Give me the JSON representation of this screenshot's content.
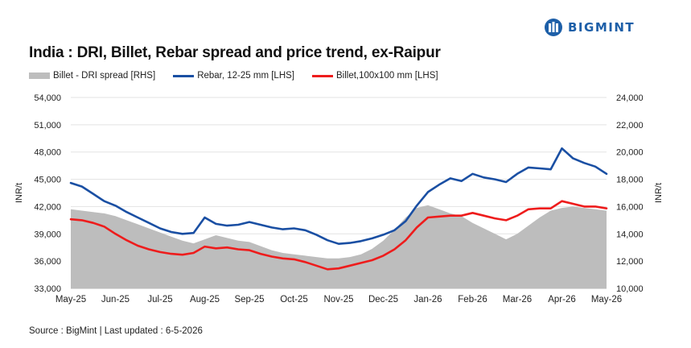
{
  "logo": {
    "text": "BIGMINT"
  },
  "chart_data": {
    "type": "line",
    "title": "India : DRI, Billet, Rebar spread and price trend, ex-Raipur",
    "ylabel_left": "INR/t",
    "ylabel_right": "INR/t",
    "ylim_left": [
      33000,
      54000
    ],
    "ylim_right": [
      10000,
      24000
    ],
    "yticks_left": [
      "33,000",
      "36,000",
      "39,000",
      "42,000",
      "45,000",
      "48,000",
      "51,000",
      "54,000"
    ],
    "yticks_right": [
      "10,000",
      "12,000",
      "14,000",
      "16,000",
      "18,000",
      "20,000",
      "22,000",
      "24,000"
    ],
    "x_categories": [
      "May-25",
      "Jun-25",
      "Jul-25",
      "Aug-25",
      "Sep-25",
      "Oct-25",
      "Nov-25",
      "Dec-25",
      "Jan-26",
      "Feb-26",
      "Mar-26",
      "Apr-26",
      "May-26"
    ],
    "legend_position": "top",
    "grid": "horizontal",
    "series": [
      {
        "name": "Billet - DRI spread  [RHS]",
        "type": "area",
        "axis": "right",
        "color": "#bdbdbd",
        "x": [
          0,
          0.25,
          0.5,
          0.75,
          1,
          1.25,
          1.5,
          1.75,
          2,
          2.25,
          2.5,
          2.75,
          3,
          3.25,
          3.5,
          3.75,
          4,
          4.25,
          4.5,
          4.75,
          5,
          5.25,
          5.5,
          5.75,
          6,
          6.25,
          6.5,
          6.75,
          7,
          7.25,
          7.5,
          7.75,
          8,
          8.25,
          8.5,
          8.75,
          9,
          9.25,
          9.5,
          9.75,
          10,
          10.25,
          10.5,
          10.75,
          11,
          11.25,
          11.5,
          11.75,
          12
        ],
        "values": [
          15800,
          15700,
          15600,
          15500,
          15300,
          15000,
          14700,
          14400,
          14100,
          13800,
          13500,
          13300,
          13600,
          13900,
          13700,
          13500,
          13400,
          13100,
          12800,
          12600,
          12500,
          12400,
          12300,
          12200,
          12200,
          12300,
          12500,
          12900,
          13500,
          14300,
          15200,
          15900,
          16100,
          15800,
          15500,
          15300,
          14800,
          14400,
          14000,
          13600,
          14000,
          14600,
          15200,
          15700,
          15900,
          16000,
          15900,
          15800,
          15700
        ]
      },
      {
        "name": "Rebar, 12-25 mm [LHS]",
        "type": "line",
        "axis": "left",
        "color": "#1a4fa3",
        "x": [
          0,
          0.25,
          0.5,
          0.75,
          1,
          1.25,
          1.5,
          1.75,
          2,
          2.25,
          2.5,
          2.75,
          3,
          3.25,
          3.5,
          3.75,
          4,
          4.25,
          4.5,
          4.75,
          5,
          5.25,
          5.5,
          5.75,
          6,
          6.25,
          6.5,
          6.75,
          7,
          7.25,
          7.5,
          7.75,
          8,
          8.25,
          8.5,
          8.75,
          9,
          9.25,
          9.5,
          9.75,
          10,
          10.25,
          10.5,
          10.75,
          11,
          11.25,
          11.5,
          11.75,
          12
        ],
        "values": [
          44600,
          44200,
          43400,
          42600,
          42100,
          41400,
          40800,
          40200,
          39600,
          39200,
          39000,
          39100,
          40800,
          40100,
          39900,
          40000,
          40300,
          40000,
          39700,
          39500,
          39600,
          39400,
          38900,
          38300,
          37900,
          38000,
          38200,
          38500,
          38900,
          39400,
          40400,
          42100,
          43600,
          44400,
          45100,
          44800,
          45600,
          45200,
          45000,
          44700,
          45600,
          46300,
          46200,
          46100,
          48400,
          47300,
          46800,
          46400,
          45600
        ]
      },
      {
        "name": "Billet,100x100 mm [LHS]",
        "type": "line",
        "axis": "left",
        "color": "#ee1c1c",
        "x": [
          0,
          0.25,
          0.5,
          0.75,
          1,
          1.25,
          1.5,
          1.75,
          2,
          2.25,
          2.5,
          2.75,
          3,
          3.25,
          3.5,
          3.75,
          4,
          4.25,
          4.5,
          4.75,
          5,
          5.25,
          5.5,
          5.75,
          6,
          6.25,
          6.5,
          6.75,
          7,
          7.25,
          7.5,
          7.75,
          8,
          8.25,
          8.5,
          8.75,
          9,
          9.25,
          9.5,
          9.75,
          10,
          10.25,
          10.5,
          10.75,
          11,
          11.25,
          11.5,
          11.75,
          12
        ],
        "values": [
          40600,
          40500,
          40200,
          39800,
          39000,
          38300,
          37700,
          37300,
          37000,
          36800,
          36700,
          36900,
          37600,
          37400,
          37500,
          37300,
          37200,
          36800,
          36500,
          36300,
          36200,
          35900,
          35500,
          35100,
          35200,
          35500,
          35800,
          36100,
          36600,
          37300,
          38300,
          39700,
          40800,
          40900,
          41000,
          41000,
          41300,
          41000,
          40700,
          40500,
          41000,
          41700,
          41800,
          41800,
          42600,
          42300,
          42000,
          42000,
          41800
        ]
      }
    ]
  },
  "source": "Source : BigMint | Last updated : 6-5-2026"
}
